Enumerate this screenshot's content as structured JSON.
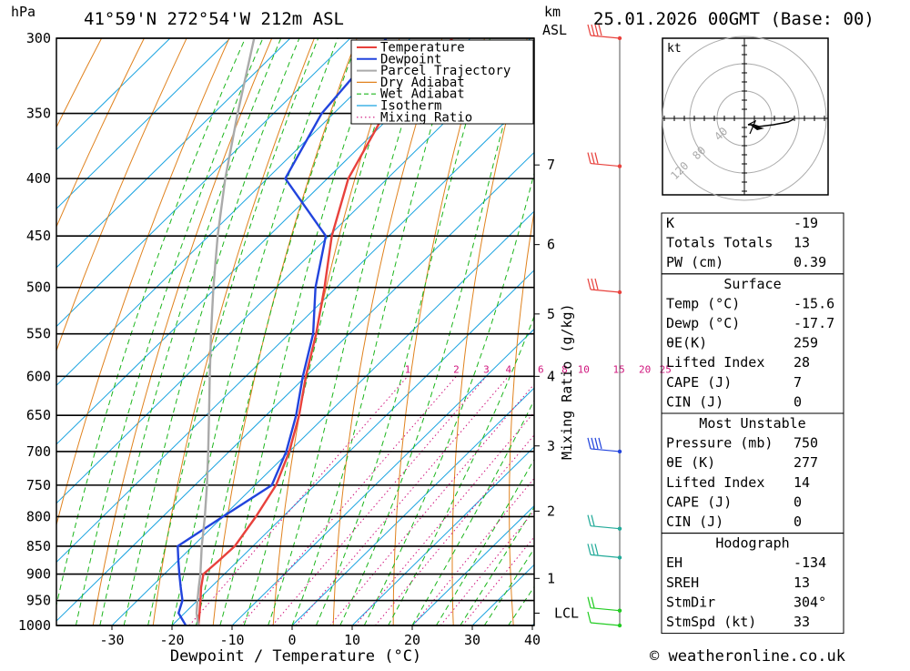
{
  "header": {
    "hpa_label": "hPa",
    "location": "41°59'N  272°54'W  212m  ASL",
    "km_label": "km",
    "asl_label": "ASL",
    "datetime": "25.01.2026  00GMT  (Base: 00)"
  },
  "chart_data": {
    "type": "line",
    "title": "",
    "xlabel": "Dewpoint / Temperature (°C)",
    "ylabel": "hPa",
    "secondary_ylabel": "Mixing Ratio (g/kg)",
    "xlim": [
      -40,
      40
    ],
    "ylim": [
      1000,
      300
    ],
    "y_log_scale": true,
    "skew": true,
    "x_ticks": [
      "-30",
      "-20",
      "-10",
      "0",
      "10",
      "20",
      "30",
      "40"
    ],
    "x_tick_values": [
      -30,
      -20,
      -10,
      0,
      10,
      20,
      30,
      40
    ],
    "pressure_levels": [
      300,
      350,
      400,
      450,
      500,
      550,
      600,
      650,
      700,
      750,
      800,
      850,
      900,
      950,
      1000
    ],
    "km_ticks": [
      {
        "label": "1",
        "p": 908
      },
      {
        "label": "2",
        "p": 791
      },
      {
        "label": "3",
        "p": 692
      },
      {
        "label": "4",
        "p": 600
      },
      {
        "label": "5",
        "p": 528
      },
      {
        "label": "6",
        "p": 458
      },
      {
        "label": "7",
        "p": 389
      }
    ],
    "lcl": {
      "label": "LCL",
      "p": 975
    },
    "mixing_ratio_labels": [
      "1",
      "2",
      "3",
      "4",
      "6",
      "8",
      "10",
      "15",
      "20",
      "25"
    ],
    "mixing_ratio_values": [
      1,
      2,
      3,
      4,
      6,
      8,
      10,
      15,
      20,
      25
    ],
    "legend_position": "top-right",
    "grid": true,
    "series": [
      {
        "name": "Temperature",
        "color": "#e8413c",
        "p": [
          1000,
          975,
          950,
          925,
          900,
          875,
          850,
          800,
          750,
          700,
          650,
          600,
          550,
          500,
          450,
          400,
          350,
          300
        ],
        "t": [
          -15.6,
          -17.5,
          -19.5,
          -21.6,
          -23.5,
          -23.2,
          -23.0,
          -24.5,
          -26.5,
          -30.0,
          -34.5,
          -40.0,
          -45.5,
          -52.0,
          -59.5,
          -66.5,
          -71.5,
          -73.0
        ]
      },
      {
        "name": "Dewpoint",
        "color": "#2244dd",
        "p": [
          1000,
          975,
          950,
          925,
          900,
          875,
          850,
          800,
          750,
          700,
          650,
          600,
          550,
          500,
          450,
          400,
          350,
          300
        ],
        "t": [
          -17.7,
          -21.0,
          -22.5,
          -25.0,
          -27.5,
          -30.0,
          -32.5,
          -30.0,
          -27.2,
          -30.5,
          -35.0,
          -40.5,
          -46.0,
          -53.5,
          -60.5,
          -77.0,
          -82.0,
          -84.0
        ]
      },
      {
        "name": "Parcel Trajectory",
        "color": "#aaaaaa",
        "p": [
          1000,
          975,
          950,
          925,
          900,
          850,
          800,
          750,
          700,
          650,
          600,
          550,
          500,
          450,
          400,
          350,
          300
        ],
        "t": [
          -15.6,
          -18.0,
          -20.0,
          -22.0,
          -24.0,
          -28.5,
          -33.0,
          -38.0,
          -43.5,
          -49.5,
          -56.0,
          -63.0,
          -70.5,
          -78.5,
          -87.0,
          -96.0,
          -106.0
        ]
      }
    ],
    "reference_lines": [
      {
        "name": "Dry Adiabat",
        "color": "#e0821e"
      },
      {
        "name": "Wet Adiabat",
        "color": "#1bb51b"
      },
      {
        "name": "Isotherm",
        "color": "#1aa3e0"
      },
      {
        "name": "Mixing Ratio",
        "color": "#d0157d"
      }
    ]
  },
  "hodograph": {
    "unit": "kt",
    "ring_labels": [
      "40",
      "80",
      "120"
    ]
  },
  "indices": {
    "top": [
      {
        "label": "K",
        "value": "-19"
      },
      {
        "label": "Totals Totals",
        "value": "13"
      },
      {
        "label": "PW (cm)",
        "value": "0.39"
      }
    ],
    "surface_title": "Surface",
    "surface": [
      {
        "label": "Temp (°C)",
        "value": "-15.6"
      },
      {
        "label": "Dewp (°C)",
        "value": "-17.7"
      },
      {
        "label": "θE(K)",
        "value": "259"
      },
      {
        "label": "Lifted Index",
        "value": "28"
      },
      {
        "label": "CAPE (J)",
        "value": "7"
      },
      {
        "label": "CIN (J)",
        "value": "0"
      }
    ],
    "mu_title": "Most Unstable",
    "mu": [
      {
        "label": "Pressure (mb)",
        "value": "750"
      },
      {
        "label": "θE (K)",
        "value": "277"
      },
      {
        "label": "Lifted Index",
        "value": "14"
      },
      {
        "label": "CAPE (J)",
        "value": "0"
      },
      {
        "label": "CIN (J)",
        "value": "0"
      }
    ],
    "hodo_title": "Hodograph",
    "hodo": [
      {
        "label": "EH",
        "value": "-134"
      },
      {
        "label": "SREH",
        "value": "13"
      },
      {
        "label": "StmDir",
        "value": "304°"
      },
      {
        "label": "StmSpd (kt)",
        "value": "33"
      }
    ]
  },
  "copyright": "© weatheronline.co.uk",
  "colors": {
    "isobar": "#000000",
    "frame": "#000000",
    "wind_barb_red": "#e8413c",
    "wind_barb_blue": "#2244dd",
    "wind_barb_teal": "#22aa99",
    "wind_barb_green": "#22cc22"
  }
}
